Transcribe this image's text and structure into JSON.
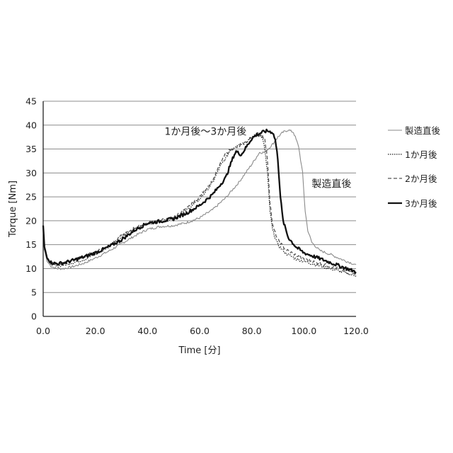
{
  "chart_data": {
    "type": "line",
    "xlabel": "Time [分]",
    "ylabel": "Torque [Nm]",
    "xlim": [
      0,
      120
    ],
    "ylim": [
      0,
      45
    ],
    "x_ticks": [
      "0.0",
      "20.0",
      "40.0",
      "60.0",
      "80.0",
      "100.0",
      "120.0"
    ],
    "y_ticks": [
      "0",
      "5",
      "10",
      "15",
      "20",
      "25",
      "30",
      "35",
      "40",
      "45"
    ],
    "grid": "horizontal",
    "legend": "right",
    "annotations": [
      {
        "text": "1か月後～3か月後",
        "x": 78,
        "y": 38
      },
      {
        "text": "製造直後",
        "x": 103,
        "y": 27
      }
    ],
    "series": [
      {
        "name": "製造直後",
        "style": "solid-thin",
        "color": "#8a8a8a",
        "points": [
          [
            0,
            19
          ],
          [
            0.5,
            14
          ],
          [
            1.5,
            11.5
          ],
          [
            3,
            10.5
          ],
          [
            5,
            10
          ],
          [
            8,
            10
          ],
          [
            12,
            10.5
          ],
          [
            16,
            11.2
          ],
          [
            20,
            12.2
          ],
          [
            25,
            13.6
          ],
          [
            30,
            15.2
          ],
          [
            35,
            16.8
          ],
          [
            40,
            18.2
          ],
          [
            45,
            18.8
          ],
          [
            50,
            19
          ],
          [
            55,
            19.6
          ],
          [
            60,
            20.6
          ],
          [
            65,
            22.3
          ],
          [
            70,
            24.8
          ],
          [
            75,
            28
          ],
          [
            80,
            31.8
          ],
          [
            83,
            34.3
          ],
          [
            85,
            34.3
          ],
          [
            88,
            36
          ],
          [
            90,
            37.5
          ],
          [
            92,
            38.5
          ],
          [
            94,
            39
          ],
          [
            96,
            38.5
          ],
          [
            98,
            35.5
          ],
          [
            99.5,
            30
          ],
          [
            100.5,
            22
          ],
          [
            101.5,
            18
          ],
          [
            103,
            15.5
          ],
          [
            106,
            13.8
          ],
          [
            110,
            13
          ],
          [
            115,
            11.8
          ],
          [
            120,
            10.8
          ]
        ]
      },
      {
        "name": "1か月後",
        "style": "dotted",
        "color": "#222222",
        "points": [
          [
            0,
            19
          ],
          [
            0.5,
            14
          ],
          [
            1.5,
            12
          ],
          [
            3,
            11
          ],
          [
            5,
            10.5
          ],
          [
            8,
            10.8
          ],
          [
            12,
            11.3
          ],
          [
            16,
            12
          ],
          [
            20,
            13
          ],
          [
            25,
            14.5
          ],
          [
            30,
            16.5
          ],
          [
            35,
            18.2
          ],
          [
            40,
            19.5
          ],
          [
            45,
            19.8
          ],
          [
            50,
            20.5
          ],
          [
            55,
            22.2
          ],
          [
            60,
            24.5
          ],
          [
            65,
            28
          ],
          [
            68,
            31.5
          ],
          [
            70,
            33
          ],
          [
            72,
            35
          ],
          [
            75,
            36
          ],
          [
            78,
            36.5
          ],
          [
            80,
            37.5
          ],
          [
            82,
            38
          ],
          [
            84,
            37.5
          ],
          [
            85,
            35
          ],
          [
            86,
            30
          ],
          [
            87,
            22
          ],
          [
            88,
            18
          ],
          [
            90,
            15
          ],
          [
            93,
            13.2
          ],
          [
            97,
            12
          ],
          [
            100,
            11.5
          ],
          [
            110,
            10
          ],
          [
            120,
            8.5
          ]
        ]
      },
      {
        "name": "2か月後",
        "style": "dashed",
        "color": "#555555",
        "points": [
          [
            0,
            19
          ],
          [
            0.5,
            14
          ],
          [
            1.5,
            12
          ],
          [
            3,
            11.2
          ],
          [
            5,
            11
          ],
          [
            8,
            11.2
          ],
          [
            12,
            11.8
          ],
          [
            16,
            12.6
          ],
          [
            20,
            13.5
          ],
          [
            25,
            14.8
          ],
          [
            30,
            16.8
          ],
          [
            35,
            18.5
          ],
          [
            40,
            19.6
          ],
          [
            45,
            20
          ],
          [
            50,
            20.8
          ],
          [
            55,
            22.5
          ],
          [
            60,
            25
          ],
          [
            65,
            28.5
          ],
          [
            68,
            32
          ],
          [
            70,
            34
          ],
          [
            72,
            35
          ],
          [
            75,
            35.5
          ],
          [
            78,
            36.5
          ],
          [
            80,
            37.5
          ],
          [
            82,
            38.2
          ],
          [
            84,
            38
          ],
          [
            85,
            37
          ],
          [
            86,
            33
          ],
          [
            87,
            24
          ],
          [
            88,
            19
          ],
          [
            90,
            16
          ],
          [
            93,
            14
          ],
          [
            97,
            12.8
          ],
          [
            100,
            12
          ],
          [
            110,
            10.5
          ],
          [
            120,
            9
          ]
        ]
      },
      {
        "name": "3か月後",
        "style": "solid-bold",
        "color": "#111111",
        "points": [
          [
            0,
            19
          ],
          [
            0.5,
            14.5
          ],
          [
            1.5,
            12.2
          ],
          [
            3,
            11.3
          ],
          [
            5,
            11
          ],
          [
            8,
            11.2
          ],
          [
            12,
            11.8
          ],
          [
            16,
            12.5
          ],
          [
            20,
            13.3
          ],
          [
            25,
            14.5
          ],
          [
            30,
            16
          ],
          [
            35,
            18
          ],
          [
            40,
            19.5
          ],
          [
            45,
            19.9
          ],
          [
            50,
            20.4
          ],
          [
            55,
            21.6
          ],
          [
            60,
            23.2
          ],
          [
            65,
            25.5
          ],
          [
            70,
            29
          ],
          [
            72,
            32
          ],
          [
            73,
            33.5
          ],
          [
            74,
            34.5
          ],
          [
            76,
            33.8
          ],
          [
            78,
            35.5
          ],
          [
            80,
            37.2
          ],
          [
            82,
            38
          ],
          [
            84,
            38.5
          ],
          [
            86,
            38.8
          ],
          [
            88,
            38.5
          ],
          [
            89,
            37
          ],
          [
            90,
            33
          ],
          [
            91,
            25
          ],
          [
            92,
            20
          ],
          [
            94,
            16.5
          ],
          [
            97,
            14.5
          ],
          [
            100,
            13.3
          ],
          [
            105,
            12.3
          ],
          [
            110,
            11.3
          ],
          [
            115,
            10.3
          ],
          [
            120,
            9.3
          ]
        ]
      }
    ]
  }
}
